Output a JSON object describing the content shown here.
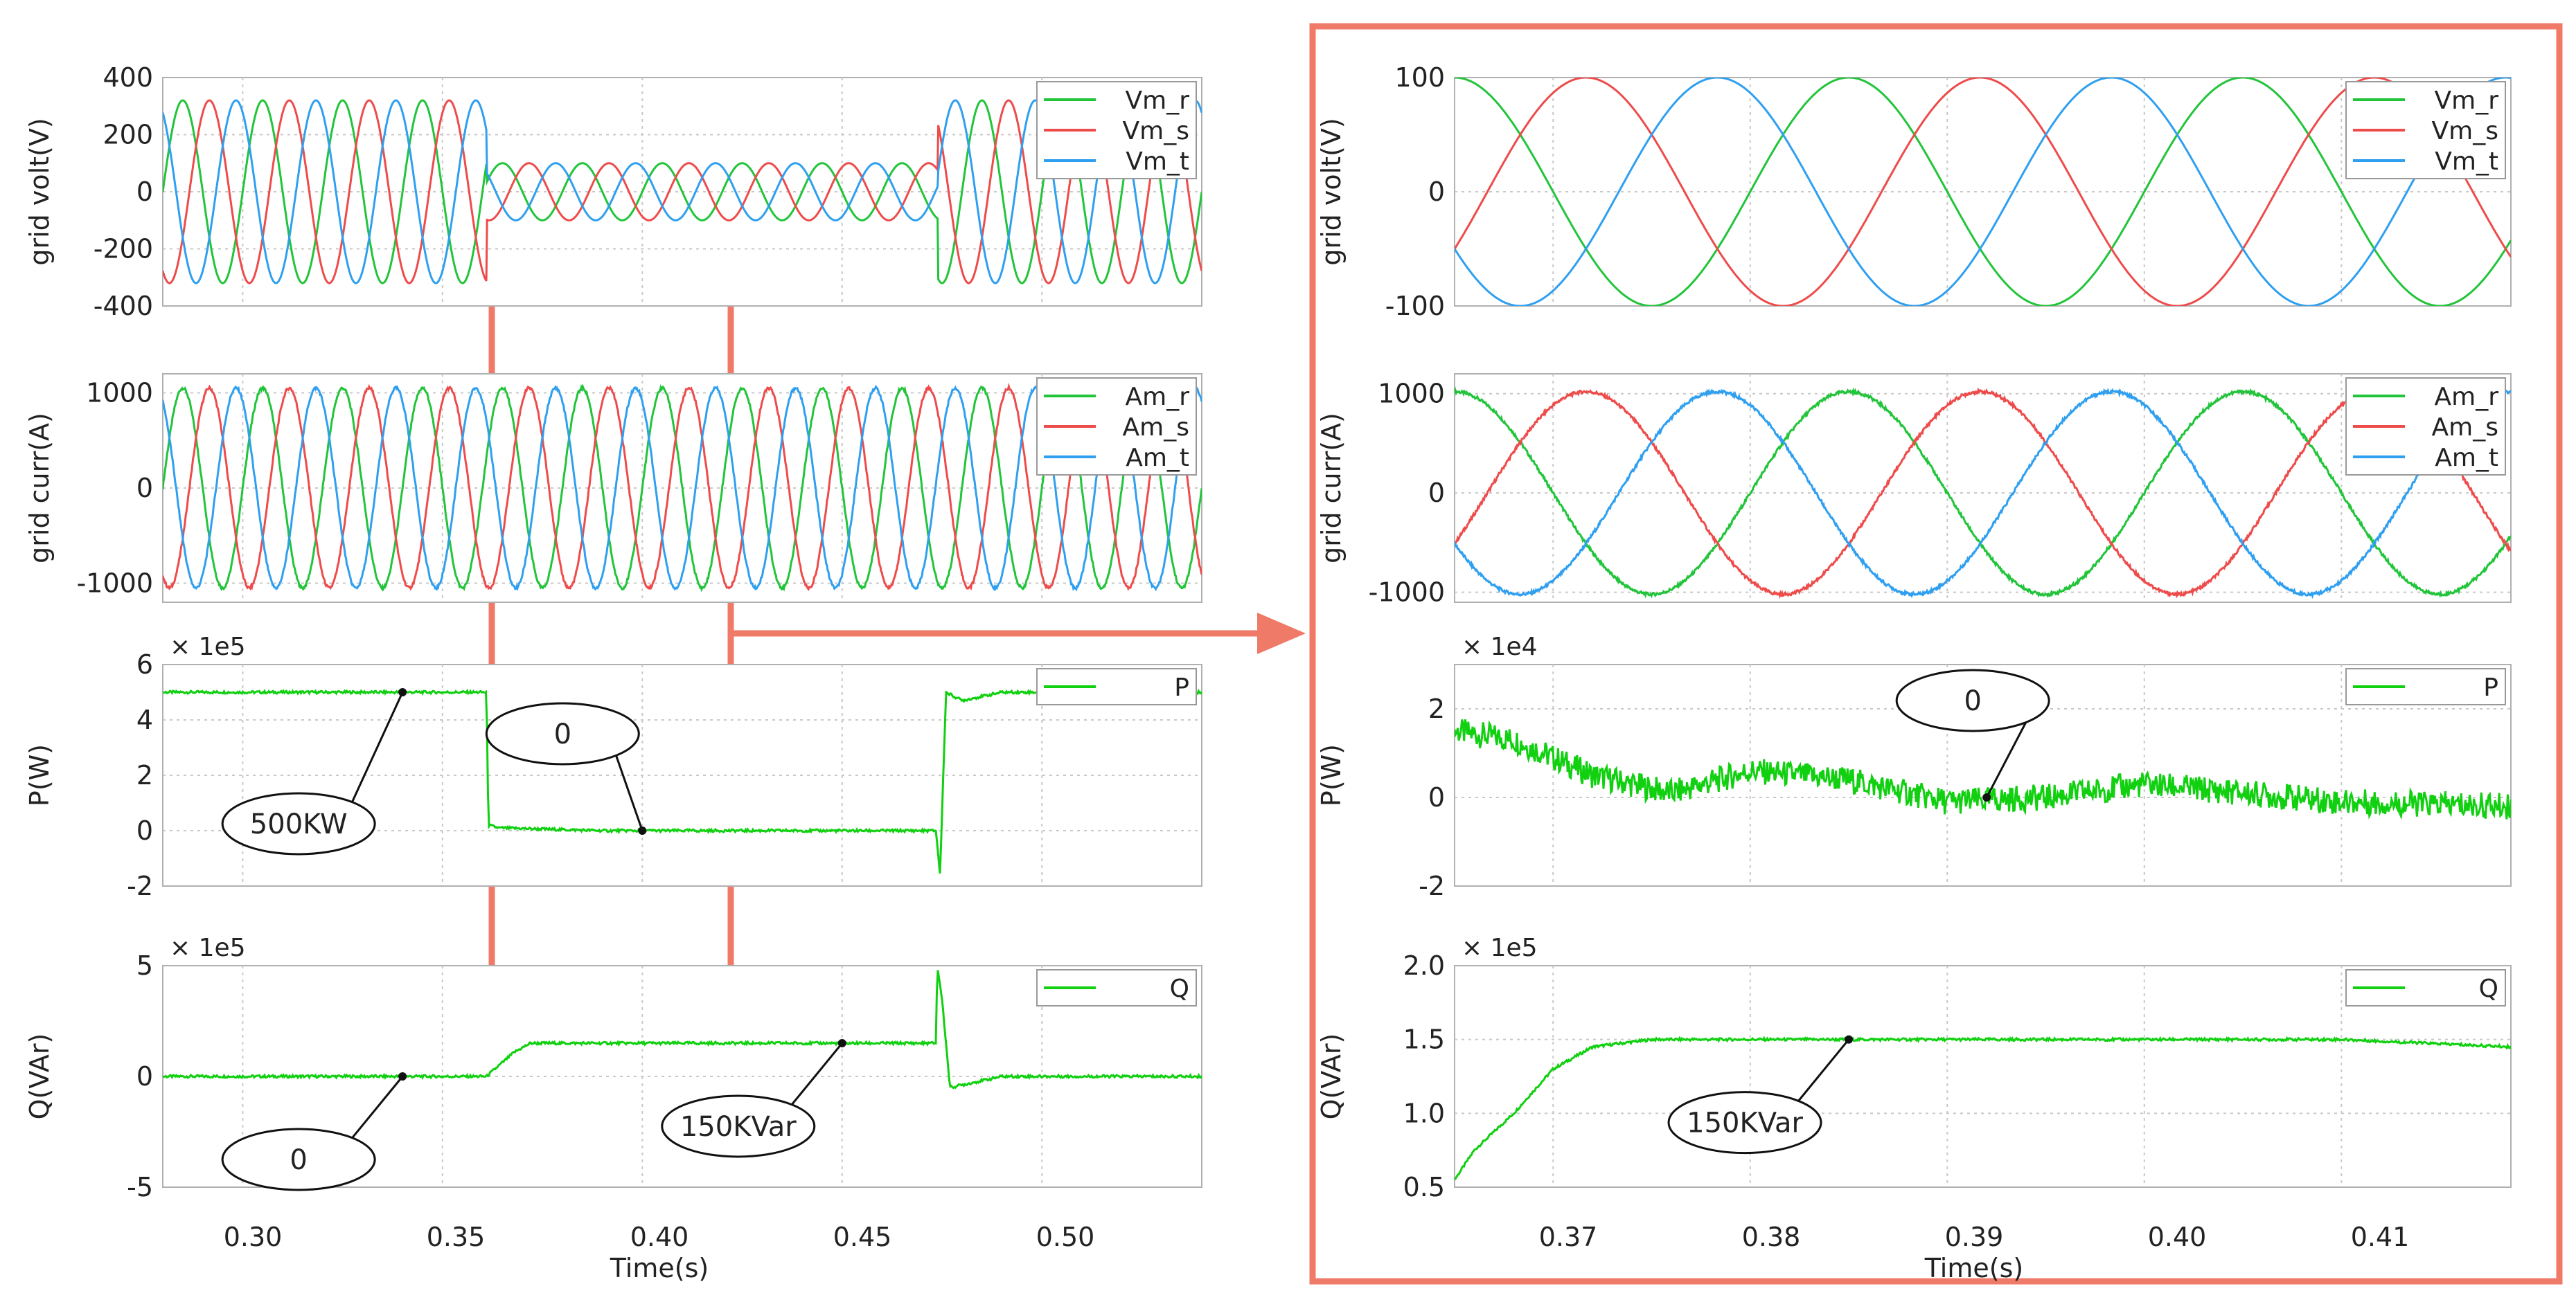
{
  "colors": {
    "r": "#22c43a",
    "s": "#ee4b4b",
    "t": "#2f9ff0",
    "pq": "#10d010",
    "highlight": "#f07a68",
    "grid": "#c8c8c8"
  },
  "left": {
    "xlabel": "Time(s)",
    "x_ticks": [
      "0.30",
      "0.35",
      "0.40",
      "0.45",
      "0.50"
    ]
  },
  "right": {
    "xlabel": "Time(s)",
    "x_ticks": [
      "0.37",
      "0.38",
      "0.39",
      "0.40",
      "0.41"
    ]
  },
  "chart_data": [
    {
      "id": "left-voltage",
      "type": "line",
      "title": "",
      "ylabel": "grid volt(V)",
      "xlim": [
        0.28,
        0.54
      ],
      "ylim": [
        -400,
        400
      ],
      "y_ticks": [
        "400",
        "200",
        "0",
        "-200",
        "-400"
      ],
      "scale_label": "",
      "frequency_hz": 50,
      "segments": [
        {
          "t_start": 0.28,
          "t_end": 0.361,
          "amplitude": 320
        },
        {
          "t_start": 0.361,
          "t_end": 0.474,
          "amplitude": 100
        },
        {
          "t_start": 0.474,
          "t_end": 0.54,
          "amplitude": 320
        }
      ],
      "series": [
        {
          "name": "Vm_r",
          "phase_deg": 0
        },
        {
          "name": "Vm_s",
          "phase_deg": -120
        },
        {
          "name": "Vm_t",
          "phase_deg": 120
        }
      ],
      "legend": [
        "Vm_r",
        "Vm_s",
        "Vm_t"
      ]
    },
    {
      "id": "left-current",
      "type": "line",
      "title": "",
      "ylabel": "grid curr(A)",
      "xlim": [
        0.28,
        0.54
      ],
      "ylim": [
        -1200,
        1200
      ],
      "y_ticks": [
        "1000",
        "0",
        "-1000"
      ],
      "scale_label": "",
      "frequency_hz": 50,
      "amplitude": 1050,
      "series": [
        {
          "name": "Am_r",
          "phase_deg": 0
        },
        {
          "name": "Am_s",
          "phase_deg": -120
        },
        {
          "name": "Am_t",
          "phase_deg": 120
        }
      ],
      "legend": [
        "Am_r",
        "Am_s",
        "Am_t"
      ]
    },
    {
      "id": "left-p",
      "type": "line",
      "title": "",
      "ylabel": "P(W)",
      "xlim": [
        0.28,
        0.54
      ],
      "ylim": [
        -2,
        6
      ],
      "y_ticks": [
        "6",
        "4",
        "2",
        "0",
        "-2"
      ],
      "scale_label": "× 1e5",
      "series": [
        {
          "name": "P",
          "x": [
            0.28,
            0.361,
            0.3615,
            0.364,
            0.39,
            0.42,
            0.4735,
            0.4745,
            0.476,
            0.48,
            0.49,
            0.54
          ],
          "y": [
            5.0,
            5.0,
            0.2,
            0.1,
            0.0,
            0.0,
            0.0,
            -1.6,
            5.0,
            4.7,
            5.0,
            5.0
          ]
        }
      ],
      "legend": [
        "P"
      ],
      "annotations": [
        {
          "text": "500KW",
          "x": 0.34,
          "y": 5.0
        },
        {
          "text": "0",
          "x": 0.4,
          "y": 0.0
        }
      ]
    },
    {
      "id": "left-q",
      "type": "line",
      "title": "",
      "ylabel": "Q(VAr)",
      "xlim": [
        0.28,
        0.54
      ],
      "ylim": [
        -5,
        5
      ],
      "y_ticks": [
        "5",
        "0",
        "-5"
      ],
      "scale_label": "× 1e5",
      "series": [
        {
          "name": "Q",
          "x": [
            0.28,
            0.361,
            0.368,
            0.372,
            0.42,
            0.4735,
            0.4738,
            0.475,
            0.477,
            0.49,
            0.54
          ],
          "y": [
            0.0,
            0.0,
            1.1,
            1.5,
            1.5,
            1.5,
            5.0,
            3.5,
            -0.5,
            0.0,
            0.0
          ]
        }
      ],
      "legend": [
        "Q"
      ],
      "annotations": [
        {
          "text": "0",
          "x": 0.34,
          "y": 0.0
        },
        {
          "text": "150KVar",
          "x": 0.45,
          "y": 1.5
        }
      ]
    },
    {
      "id": "right-voltage",
      "type": "line",
      "title": "",
      "ylabel": "grid volt(V)",
      "xlim": [
        0.365,
        0.4186
      ],
      "ylim": [
        -100,
        100
      ],
      "y_ticks": [
        "100",
        "0",
        "-100"
      ],
      "scale_label": "",
      "frequency_hz": 50,
      "amplitude": 100,
      "series": [
        {
          "name": "Vm_r",
          "phase_deg": 0
        },
        {
          "name": "Vm_s",
          "phase_deg": -120
        },
        {
          "name": "Vm_t",
          "phase_deg": 120
        }
      ],
      "legend": [
        "Vm_r",
        "Vm_s",
        "Vm_t"
      ]
    },
    {
      "id": "right-current",
      "type": "line",
      "title": "",
      "ylabel": "grid curr(A)",
      "xlim": [
        0.365,
        0.4186
      ],
      "ylim": [
        -1100,
        1200
      ],
      "y_ticks": [
        "1000",
        "0",
        "-1000"
      ],
      "scale_label": "",
      "frequency_hz": 50,
      "amplitude": 1020,
      "series": [
        {
          "name": "Am_r",
          "phase_deg": 0
        },
        {
          "name": "Am_s",
          "phase_deg": -120
        },
        {
          "name": "Am_t",
          "phase_deg": 120
        }
      ],
      "legend": [
        "Am_r",
        "Am_s",
        "Am_t"
      ]
    },
    {
      "id": "right-p",
      "type": "line",
      "title": "",
      "ylabel": "P(W)",
      "xlim": [
        0.365,
        0.4186
      ],
      "ylim": [
        -2,
        3
      ],
      "y_ticks": [
        "2",
        "0",
        "-2"
      ],
      "scale_label": "× 1e4",
      "series": [
        {
          "name": "P",
          "x": [
            0.365,
            0.368,
            0.372,
            0.376,
            0.38,
            0.385,
            0.39,
            0.395,
            0.4,
            0.405,
            0.41,
            0.4186
          ],
          "y": [
            1.5,
            1.3,
            0.5,
            0.1,
            0.6,
            0.4,
            -0.1,
            0.0,
            0.3,
            0.1,
            -0.1,
            -0.2
          ]
        }
      ],
      "legend": [
        "P"
      ],
      "annotations": [
        {
          "text": "0",
          "x": 0.392,
          "y": 0.0
        }
      ]
    },
    {
      "id": "right-q",
      "type": "line",
      "title": "",
      "ylabel": "Q(VAr)",
      "xlim": [
        0.365,
        0.4186
      ],
      "ylim": [
        0.5,
        2.0
      ],
      "y_ticks": [
        "2.0",
        "1.5",
        "1.0",
        "0.5"
      ],
      "scale_label": "× 1e5",
      "series": [
        {
          "name": "Q",
          "x": [
            0.365,
            0.366,
            0.368,
            0.37,
            0.372,
            0.375,
            0.38,
            0.39,
            0.4,
            0.41,
            0.4186
          ],
          "y": [
            0.55,
            0.75,
            1.0,
            1.3,
            1.45,
            1.5,
            1.5,
            1.5,
            1.5,
            1.5,
            1.45
          ]
        }
      ],
      "legend": [
        "Q"
      ],
      "annotations": [
        {
          "text": "150KVar",
          "x": 0.385,
          "y": 1.5
        }
      ]
    }
  ]
}
